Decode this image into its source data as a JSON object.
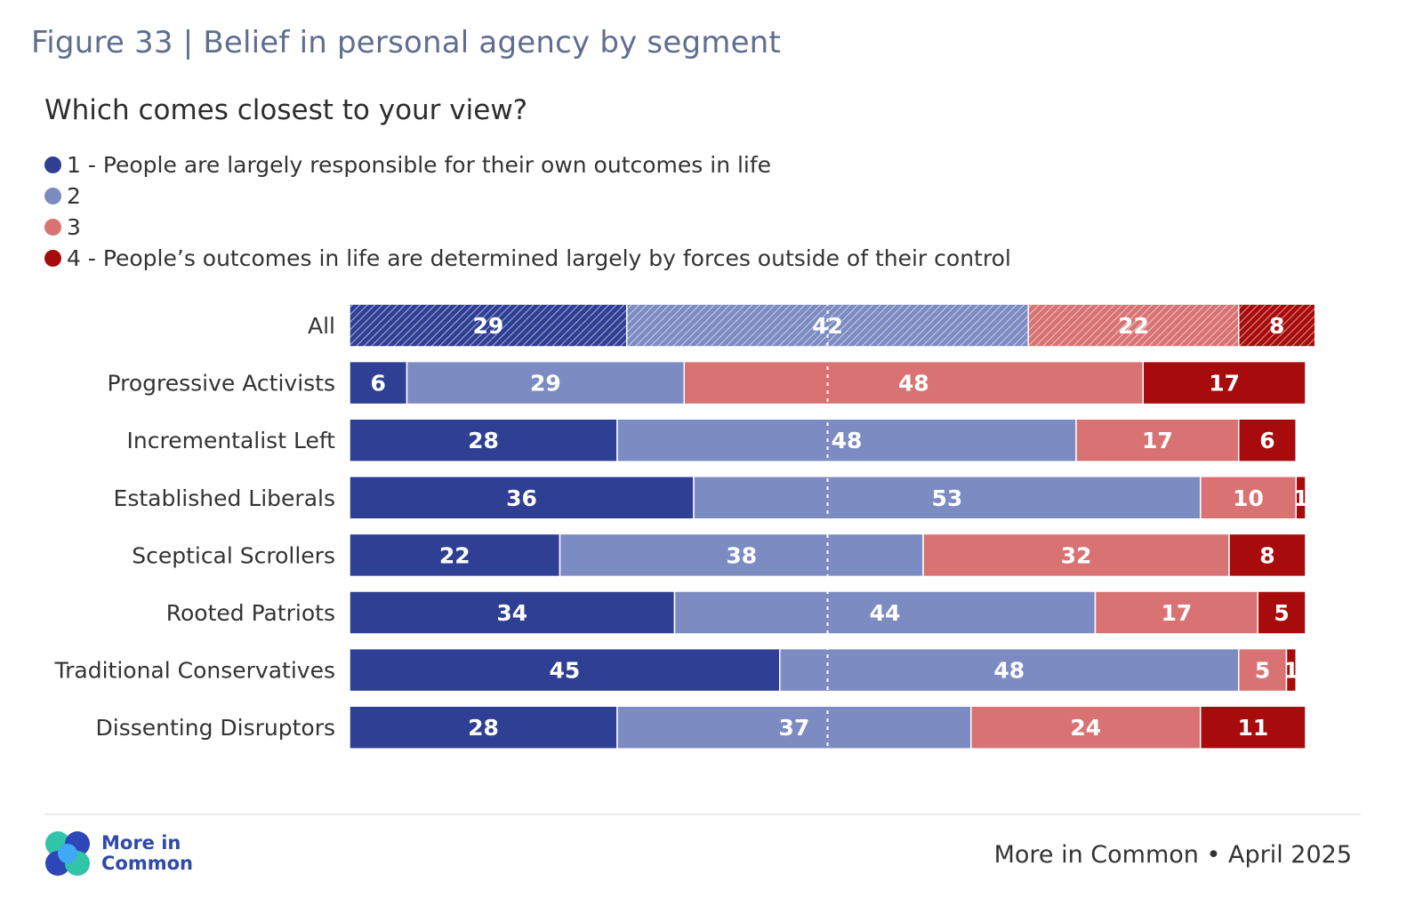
{
  "header": {
    "figure_title": "Figure 33 | Belief in personal agency by segment",
    "question": "Which comes closest to your view?"
  },
  "legend": [
    {
      "label": "1 - People are largely responsible for their own outcomes in life",
      "color": "#2e3f94"
    },
    {
      "label": "2",
      "color": "#7c8bc2"
    },
    {
      "label": "3",
      "color": "#d97373"
    },
    {
      "label": "4 - People’s outcomes in life are determined largely by forces outside of their control",
      "color": "#a80b0b"
    }
  ],
  "chart_data": {
    "type": "bar",
    "orientation": "horizontal",
    "stacked": true,
    "percent_scale": true,
    "xlim": [
      0,
      100
    ],
    "midline": 50,
    "categories": [
      "All",
      "Progressive Activists",
      "Incrementalist Left",
      "Established Liberals",
      "Sceptical Scrollers",
      "Rooted Patriots",
      "Traditional Conservatives",
      "Dissenting Disruptors"
    ],
    "hatched_categories": [
      "All"
    ],
    "series": [
      {
        "name": "1 - People are largely responsible for their own outcomes in life",
        "color": "#2e3f94",
        "values": [
          29,
          6,
          28,
          36,
          22,
          34,
          45,
          28
        ]
      },
      {
        "name": "2",
        "color": "#7c8bc2",
        "values": [
          42,
          29,
          48,
          53,
          38,
          44,
          48,
          37
        ]
      },
      {
        "name": "3",
        "color": "#d97373",
        "values": [
          22,
          48,
          17,
          10,
          32,
          17,
          5,
          24
        ]
      },
      {
        "name": "4 - People’s outcomes in life are determined largely by forces outside of their control",
        "color": "#a80b0b",
        "values": [
          8,
          17,
          6,
          1,
          8,
          5,
          1,
          11
        ]
      }
    ]
  },
  "footer": {
    "logo_line1": "More in",
    "logo_line2": "Common",
    "source": "More in Common • April 2025"
  }
}
